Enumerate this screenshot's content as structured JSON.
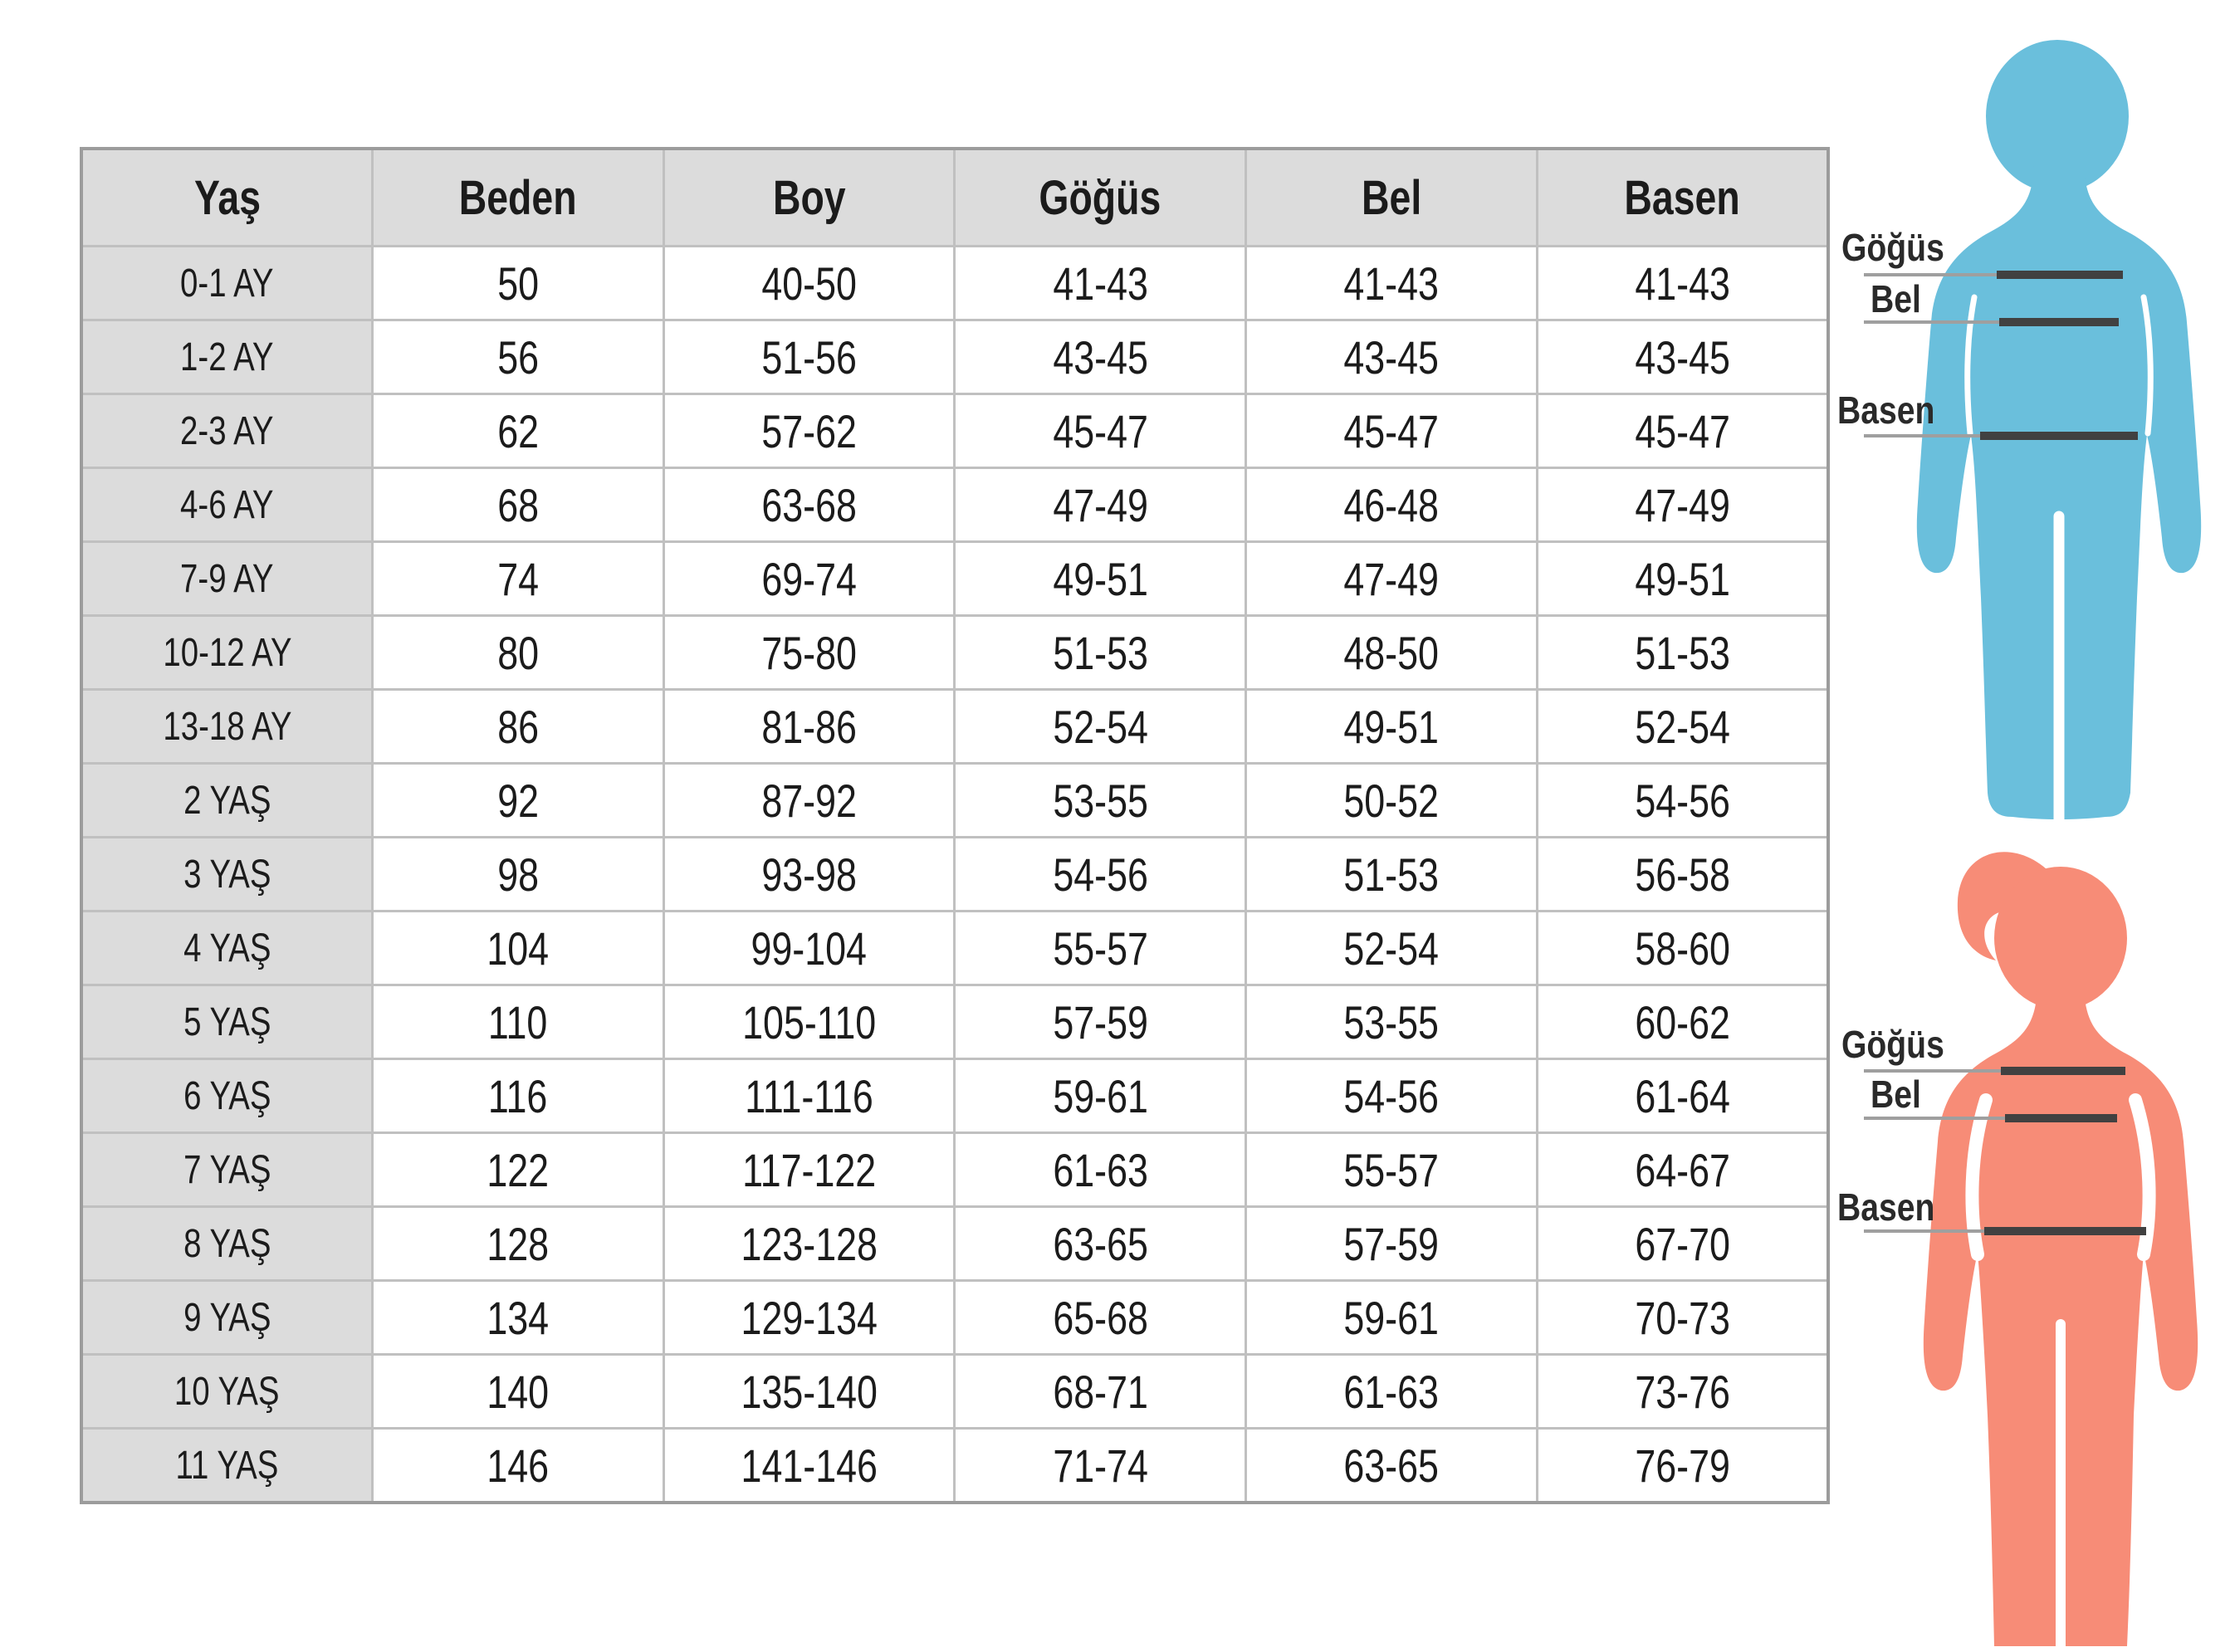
{
  "table": {
    "header": [
      "Yaş",
      "Beden",
      "Boy",
      "Göğüs",
      "Bel",
      "Basen"
    ],
    "rows": [
      [
        "0-1 AY",
        "50",
        "40-50",
        "41-43",
        "41-43",
        "41-43"
      ],
      [
        "1-2 AY",
        "56",
        "51-56",
        "43-45",
        "43-45",
        "43-45"
      ],
      [
        "2-3 AY",
        "62",
        "57-62",
        "45-47",
        "45-47",
        "45-47"
      ],
      [
        "4-6 AY",
        "68",
        "63-68",
        "47-49",
        "46-48",
        "47-49"
      ],
      [
        "7-9 AY",
        "74",
        "69-74",
        "49-51",
        "47-49",
        "49-51"
      ],
      [
        "10-12 AY",
        "80",
        "75-80",
        "51-53",
        "48-50",
        "51-53"
      ],
      [
        "13-18 AY",
        "86",
        "81-86",
        "52-54",
        "49-51",
        "52-54"
      ],
      [
        "2 YAŞ",
        "92",
        "87-92",
        "53-55",
        "50-52",
        "54-56"
      ],
      [
        "3 YAŞ",
        "98",
        "93-98",
        "54-56",
        "51-53",
        "56-58"
      ],
      [
        "4 YAŞ",
        "104",
        "99-104",
        "55-57",
        "52-54",
        "58-60"
      ],
      [
        "5 YAŞ",
        "110",
        "105-110",
        "57-59",
        "53-55",
        "60-62"
      ],
      [
        "6 YAŞ",
        "116",
        "111-116",
        "59-61",
        "54-56",
        "61-64"
      ],
      [
        "7 YAŞ",
        "122",
        "117-122",
        "61-63",
        "55-57",
        "64-67"
      ],
      [
        "8 YAŞ",
        "128",
        "123-128",
        "63-65",
        "57-59",
        "67-70"
      ],
      [
        "9 YAŞ",
        "134",
        "129-134",
        "65-68",
        "59-61",
        "70-73"
      ],
      [
        "10 YAŞ",
        "140",
        "135-140",
        "68-71",
        "61-63",
        "73-76"
      ],
      [
        "11 YAŞ",
        "146",
        "141-146",
        "71-74",
        "63-65",
        "76-79"
      ]
    ]
  },
  "chart_data": {
    "type": "table",
    "title": "",
    "columns": [
      "Yaş",
      "Beden",
      "Boy",
      "Göğüs",
      "Bel",
      "Basen"
    ],
    "rows_note": "see table.rows"
  },
  "figures": {
    "boy": {
      "color": "#6abfdc",
      "labels": [
        "Göğüs",
        "Bel",
        "Basen"
      ]
    },
    "girl": {
      "color": "#f78c77",
      "labels": [
        "Göğüs",
        "Bel",
        "Basen"
      ]
    }
  },
  "colors": {
    "header_bg": "#dcdcdc",
    "border": "#c0c0c0",
    "border_outer": "#9c9c9c",
    "text": "#1b1b1b",
    "line_thin": "#9f9f9f",
    "line_thick": "#414141"
  }
}
